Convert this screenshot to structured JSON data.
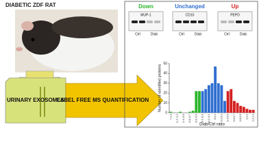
{
  "figure": {
    "title": "DIABETIC ZDF RAT",
    "left_box": "URINARY EXOSOMES",
    "arrow_text": "LABEL FREE MS QUANTIFICATION",
    "blots": [
      {
        "protein": "MUP-1",
        "lanes": [
          "Ctrl",
          "Diab"
        ]
      },
      {
        "protein": "CD10",
        "lanes": [
          "Ctrl",
          "Diab"
        ]
      },
      {
        "protein": "PEPD",
        "lanes": [
          "Ctrl",
          "Diab"
        ]
      }
    ]
  },
  "chart_data": {
    "type": "bar",
    "ylabel": "Number of identified proteins",
    "xlabel": "Diab/Ctrl ratio",
    "categories": [
      "<-1.3",
      null,
      "-1.2;-1.1",
      null,
      "-1.0;-0.9",
      null,
      "-0.8;-0.7",
      null,
      "-0.6;-0.5",
      null,
      "-0.4;-0.3",
      null,
      "-0.2;-0.1",
      null,
      "0;0.1",
      null,
      "0.2;0.3",
      null,
      "0.4;0.5",
      null,
      "0.6;0.7",
      null,
      "0.8;0.9",
      null,
      "1;1.1",
      null,
      "1.2;1.3"
    ],
    "series": [
      {
        "name": "Down",
        "color": "#2db52d",
        "values": [
          1,
          0,
          0,
          1,
          0,
          0,
          1,
          2,
          22,
          22,
          null,
          null,
          null,
          null,
          null,
          null,
          null,
          null,
          null,
          null,
          null,
          null,
          null,
          null,
          null,
          null,
          null
        ]
      },
      {
        "name": "Unchanged",
        "color": "#2f6fd0",
        "values": [
          null,
          null,
          null,
          null,
          null,
          null,
          null,
          null,
          null,
          null,
          22,
          24,
          28,
          30,
          47,
          30,
          28,
          12,
          null,
          null,
          null,
          null,
          null,
          null,
          null,
          null,
          null
        ]
      },
      {
        "name": "Up",
        "color": "#d42020",
        "values": [
          null,
          null,
          null,
          null,
          null,
          null,
          null,
          null,
          null,
          null,
          null,
          null,
          null,
          null,
          null,
          null,
          null,
          null,
          22,
          24,
          12,
          10,
          7,
          6,
          4,
          3,
          3
        ]
      }
    ],
    "ylim": [
      0,
      50
    ],
    "yticks": [
      0,
      10,
      20,
      30,
      40,
      50
    ]
  }
}
